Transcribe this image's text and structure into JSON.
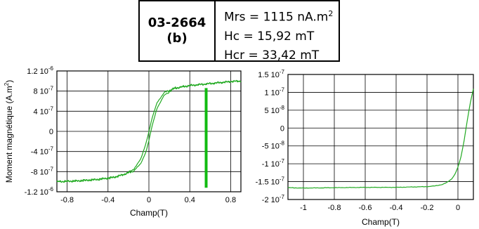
{
  "sample": {
    "id": "03-2664",
    "panel": "(b)"
  },
  "params": {
    "mrs": "Mrs = 1115 nA.m",
    "mrs_sup": "2",
    "hc": "Hc = 15,92 mT",
    "hcr": "Hcr = 33,42 mT"
  },
  "colors": {
    "curve": "#22aa22",
    "marker": "#11bb11",
    "grid": "#000000"
  },
  "chart_data": [
    {
      "type": "line",
      "xlabel": "Champ(T)",
      "ylabel": "Moment magnétique (A.m²)",
      "ylabel_parts": {
        "main": "Moment magnétique (A.m",
        "sup": "2",
        "end": ")"
      },
      "xlim": [
        -0.9,
        0.9
      ],
      "ylim": [
        -1.2e-06,
        1.2e-06
      ],
      "x_ticks": [
        {
          "v": -0.8,
          "label": "-0.8"
        },
        {
          "v": -0.4,
          "label": "-0.4"
        },
        {
          "v": 0,
          "label": "0"
        },
        {
          "v": 0.4,
          "label": "0.4"
        },
        {
          "v": 0.8,
          "label": "0.8"
        }
      ],
      "y_ticks": [
        {
          "v": 1.2e-06,
          "m": "1.2 10",
          "e": "-6"
        },
        {
          "v": 8e-07,
          "m": "8 10",
          "e": "-7"
        },
        {
          "v": 4e-07,
          "m": "4 10",
          "e": "-7"
        },
        {
          "v": 0,
          "m": "0",
          "e": ""
        },
        {
          "v": -4e-07,
          "m": "-4 10",
          "e": "-7"
        },
        {
          "v": -8e-07,
          "m": "-8 10",
          "e": "-7"
        },
        {
          "v": -1.2e-06,
          "m": "-1.2 10",
          "e": "-6"
        }
      ],
      "grid": true,
      "marker_line": {
        "x": 0.56,
        "y_range": [
          -1.12e-06,
          8.6e-07
        ]
      },
      "series": [
        {
          "x": [
            -0.9,
            -0.7,
            -0.5,
            -0.35,
            -0.25,
            -0.15,
            -0.08,
            -0.03,
            0.0,
            0.03,
            0.08,
            0.15,
            0.25,
            0.4,
            0.6,
            0.8,
            0.9
          ],
          "y": [
            -1e-06,
            -9.9e-07,
            -9.6e-07,
            -9.2e-07,
            -8.6e-07,
            -7.6e-07,
            -5.5e-07,
            -2.5e-07,
            -1e-08,
            2.6e-07,
            5.7e-07,
            7.7e-07,
            8.6e-07,
            9.1e-07,
            9.5e-07,
            9.9e-07,
            1e-06
          ]
        },
        {
          "x": [
            -0.9,
            -0.7,
            -0.5,
            -0.35,
            -0.25,
            -0.15,
            -0.08,
            -0.03,
            0.0,
            0.03,
            0.08,
            0.15,
            0.25,
            0.4,
            0.6,
            0.8,
            0.9
          ],
          "y": [
            -1e-06,
            -9.8e-07,
            -9.5e-07,
            -9.1e-07,
            -8.6e-07,
            -7.9e-07,
            -6.4e-07,
            -4.2e-07,
            -1.8e-07,
            1e-07,
            4.6e-07,
            7.2e-07,
            8.5e-07,
            9.1e-07,
            9.5e-07,
            9.9e-07,
            1e-06
          ]
        }
      ]
    },
    {
      "type": "line",
      "xlabel": "Champ(T)",
      "xlim": [
        -1.1,
        0.1
      ],
      "ylim": [
        -2e-07,
        1.5e-07
      ],
      "x_ticks": [
        {
          "v": -1,
          "label": "-1"
        },
        {
          "v": -0.8,
          "label": "-0.8"
        },
        {
          "v": -0.6,
          "label": "-0.6"
        },
        {
          "v": -0.4,
          "label": "-0.4"
        },
        {
          "v": -0.2,
          "label": "-0.2"
        },
        {
          "v": 0,
          "label": "0"
        }
      ],
      "y_ticks": [
        {
          "v": 1.5e-07,
          "m": "1.5 10",
          "e": "-7"
        },
        {
          "v": 1e-07,
          "m": "1 10",
          "e": "-7"
        },
        {
          "v": 5e-08,
          "m": "5 10",
          "e": "-8"
        },
        {
          "v": 0,
          "m": "0",
          "e": ""
        },
        {
          "v": -5e-08,
          "m": "-5 10",
          "e": "-8"
        },
        {
          "v": -1e-07,
          "m": "-1 10",
          "e": "-7"
        },
        {
          "v": -1.5e-07,
          "m": "-1.5 10",
          "e": "-7"
        },
        {
          "v": -2e-07,
          "m": "-2 10",
          "e": "-7"
        }
      ],
      "grid": true,
      "series": [
        {
          "x": [
            -1.1,
            -1.0,
            -0.8,
            -0.6,
            -0.4,
            -0.3,
            -0.2,
            -0.15,
            -0.1,
            -0.07,
            -0.04,
            -0.02,
            0.0,
            0.02,
            0.04,
            0.06,
            0.08,
            0.1
          ],
          "y": [
            -1.67e-07,
            -1.68e-07,
            -1.67e-07,
            -1.66e-07,
            -1.66e-07,
            -1.65e-07,
            -1.64e-07,
            -1.62e-07,
            -1.58e-07,
            -1.52e-07,
            -1.42e-07,
            -1.3e-07,
            -1.1e-07,
            -8e-08,
            -3.5e-08,
            2e-08,
            7e-08,
            1.1e-07
          ]
        }
      ]
    }
  ]
}
